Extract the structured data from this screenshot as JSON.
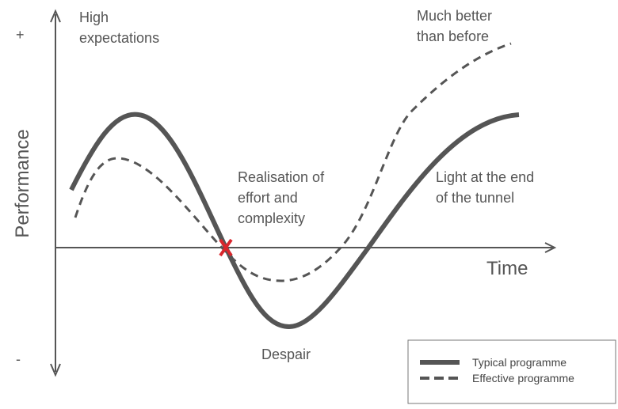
{
  "axes": {
    "y_label": "Performance",
    "y_top": "+",
    "y_bottom": "-",
    "x_label": "Time"
  },
  "annotations": [
    {
      "lines": [
        "High",
        "expectations"
      ]
    },
    {
      "lines": [
        "Much better",
        "than before"
      ]
    },
    {
      "lines": [
        "Realisation of",
        "effort and",
        "complexity"
      ]
    },
    {
      "lines": [
        "Light at the end",
        "of the tunnel"
      ]
    },
    {
      "lines": [
        "Despair"
      ]
    }
  ],
  "legend": {
    "items": [
      "Typical programme",
      "Effective programme"
    ]
  }
}
